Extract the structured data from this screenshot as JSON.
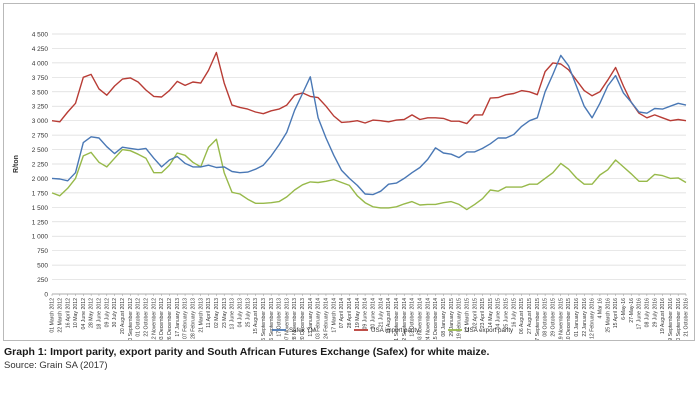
{
  "caption": {
    "title": "Graph 1: Import parity, export parity and South African Futures Exchange (Safex) for white maize.",
    "source": "Source: Grain SA (2017)"
  },
  "colors": {
    "safex": "#4a78b5",
    "import": "#b83c35",
    "export": "#97b94a",
    "grid": "#d9d9d9"
  },
  "chart_data": {
    "type": "line",
    "title": "",
    "ylabel": "R/ton",
    "xlabel": "",
    "ylim": [
      0,
      4500
    ],
    "yticks": [
      0,
      250,
      500,
      750,
      1000,
      1250,
      1500,
      1750,
      2000,
      2250,
      2500,
      2750,
      3000,
      3250,
      3500,
      3750,
      4000,
      4250,
      4500
    ],
    "ytick_labels": [
      "0",
      "250",
      "500",
      "750",
      "1 000",
      "1 250",
      "1 500",
      "1 750",
      "2 000",
      "2 250",
      "2 500",
      "2 750",
      "3 000",
      "3 250",
      "3 500",
      "3 750",
      "4 000",
      "4 250",
      "4 500"
    ],
    "grid": "horizontal",
    "legend_position": "bottom",
    "categories": [
      "01 March 2012",
      "22 March 2012",
      "16 April 2012",
      "10 May 2012",
      "04 June 2012",
      "28 May 2012",
      "18 June 2012",
      "09 July 2012",
      "30 July 2012",
      "20 August 2012",
      "10 September 2012",
      "01 October 2012",
      "22 October 2012",
      "12 November 2012",
      "03 December 2012",
      "26 December 2012",
      "17 January 2013",
      "07 February 2013",
      "28 February 2013",
      "21 March 2013",
      "11 April 2013",
      "02 May 2013",
      "23 May 2013",
      "13 June 2013",
      "04 July 2013",
      "25 July 2013",
      "15 August 2013",
      "05 September 2013",
      "26 September 2013",
      "17 October 2013",
      "07 November 2013",
      "28 November 2013",
      "20 December 2013",
      "13 January 2014",
      "03 February 2014",
      "24 February 2014",
      "17 March 2014",
      "07 April 2014",
      "28 April 2014",
      "19 May 2014",
      "09 June 2014",
      "30 June 2014",
      "21 July 2014",
      "11 August 2014",
      "01 September 2014",
      "22 September 2014",
      "13 October 2014",
      "03 November 2014",
      "24 November 2014",
      "15 December 2014",
      "08 January 2015",
      "29 January 2015",
      "19 February 2015",
      "12 March 2015",
      "02 April 2015",
      "23 April 2015",
      "14 May 2015",
      "04 June 2015",
      "25 June 2015",
      "16 July 2015",
      "06 August 2015",
      "27 August 2015",
      "17 September 2015",
      "08 October 2015",
      "29 October 2015",
      "19 November 2015",
      "10 December 2015",
      "01 January 2016",
      "22 January 2016",
      "12 February 2016",
      "4 Mar 16",
      "25 March 2016",
      "15 April 2016",
      "6-May-16",
      "27-May-16",
      "17 June 2016",
      "08 July 2016",
      "29 July 2016",
      "19 August 2016",
      "09 September 2016",
      "30 September 2016",
      "21 October 2016"
    ],
    "series": [
      {
        "name": "Safex YM",
        "values": [
          2000,
          1990,
          1960,
          2100,
          2620,
          2720,
          2700,
          2550,
          2430,
          2540,
          2520,
          2500,
          2520,
          2350,
          2200,
          2320,
          2380,
          2260,
          2200,
          2200,
          2230,
          2190,
          2200,
          2120,
          2100,
          2110,
          2160,
          2230,
          2390,
          2580,
          2800,
          3180,
          3470,
          3760,
          3050,
          2700,
          2400,
          2140,
          2000,
          1880,
          1730,
          1720,
          1780,
          1900,
          1920,
          2000,
          2100,
          2190,
          2330,
          2530,
          2440,
          2420,
          2360,
          2460,
          2460,
          2520,
          2600,
          2700,
          2700,
          2760,
          2900,
          3000,
          3050,
          3500,
          3800,
          4130,
          3950,
          3600,
          3250,
          3050,
          3300,
          3600,
          3780,
          3480,
          3320,
          3150,
          3130,
          3210,
          3200,
          3250,
          3300,
          3270
        ]
      },
      {
        "name": "USA import parity",
        "values": [
          3000,
          2980,
          3150,
          3300,
          3750,
          3800,
          3550,
          3440,
          3600,
          3720,
          3740,
          3670,
          3530,
          3420,
          3410,
          3520,
          3680,
          3610,
          3670,
          3650,
          3870,
          4180,
          3650,
          3270,
          3230,
          3200,
          3150,
          3120,
          3170,
          3200,
          3270,
          3440,
          3480,
          3420,
          3400,
          3250,
          3080,
          2970,
          2980,
          3000,
          2960,
          3010,
          3000,
          2980,
          3010,
          3020,
          3100,
          3020,
          3050,
          3050,
          3040,
          2990,
          2990,
          2950,
          3100,
          3100,
          3390,
          3400,
          3450,
          3470,
          3520,
          3500,
          3450,
          3850,
          4000,
          3980,
          3880,
          3700,
          3520,
          3430,
          3500,
          3700,
          3920,
          3600,
          3320,
          3130,
          3050,
          3100,
          3050,
          3000,
          3020,
          3000
        ]
      },
      {
        "name": "USA export parity",
        "values": [
          1750,
          1700,
          1830,
          2000,
          2390,
          2450,
          2280,
          2200,
          2350,
          2500,
          2480,
          2420,
          2350,
          2100,
          2100,
          2230,
          2440,
          2400,
          2280,
          2200,
          2540,
          2680,
          2100,
          1760,
          1730,
          1640,
          1570,
          1570,
          1580,
          1600,
          1680,
          1800,
          1890,
          1940,
          1930,
          1950,
          1980,
          1930,
          1880,
          1700,
          1580,
          1510,
          1490,
          1490,
          1510,
          1560,
          1600,
          1540,
          1550,
          1550,
          1580,
          1600,
          1550,
          1460,
          1550,
          1650,
          1800,
          1780,
          1850,
          1850,
          1850,
          1900,
          1900,
          2000,
          2100,
          2260,
          2160,
          2010,
          1900,
          1900,
          2060,
          2150,
          2320,
          2200,
          2080,
          1950,
          1950,
          2070,
          2050,
          2000,
          2010,
          1930
        ]
      }
    ]
  }
}
